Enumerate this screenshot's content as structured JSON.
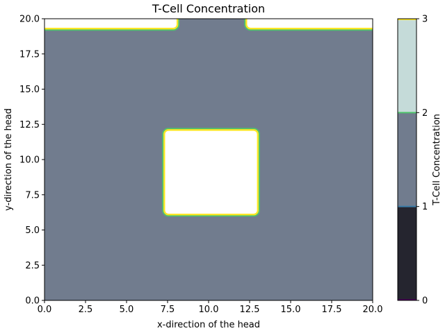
{
  "chart_data": {
    "type": "heatmap",
    "title": "T-Cell Concentration",
    "xlabel": "x-direction of the head",
    "ylabel": "y-direction of the head",
    "xlim": [
      0.0,
      20.0
    ],
    "ylim": [
      0.0,
      20.0
    ],
    "x_ticks": [
      0.0,
      2.5,
      5.0,
      7.5,
      10.0,
      12.5,
      15.0,
      17.5,
      20.0
    ],
    "x_tick_labels": [
      "0.0",
      "2.5",
      "5.0",
      "7.5",
      "10.0",
      "12.5",
      "15.0",
      "17.5",
      "20.0"
    ],
    "y_ticks": [
      0.0,
      2.5,
      5.0,
      7.5,
      10.0,
      12.5,
      15.0,
      17.5,
      20.0
    ],
    "y_tick_labels": [
      "0.0",
      "2.5",
      "5.0",
      "7.5",
      "10.0",
      "12.5",
      "15.0",
      "17.5",
      "20.0"
    ],
    "background_level": 2,
    "regions": [
      {
        "name": "center-block",
        "x": [
          7.3,
          13.0
        ],
        "y": [
          6.1,
          12.1
        ],
        "level": 3
      },
      {
        "name": "top-left-strip",
        "x": [
          0.0,
          8.1
        ],
        "y": [
          19.3,
          20.0
        ],
        "level": 3
      },
      {
        "name": "top-right-strip",
        "x": [
          12.3,
          20.0
        ],
        "y": [
          19.3,
          20.0
        ],
        "level": 3
      }
    ],
    "colorbar": {
      "label": "T-Cell Concentration",
      "range": [
        0,
        3
      ],
      "ticks": [
        0,
        1,
        2,
        3
      ],
      "tick_labels": [
        "0",
        "1",
        "2",
        "3"
      ],
      "bands": [
        {
          "from": 0,
          "to": 1,
          "color": "#25252f"
        },
        {
          "from": 1,
          "to": 2,
          "color": "#717c8e"
        },
        {
          "from": 2,
          "to": 3,
          "color": "#c5dbd9"
        }
      ],
      "boundary_colors": [
        "#440154",
        "#3a7ca8",
        "#4ec36b",
        "#fde725"
      ]
    },
    "colors": {
      "background_fill": "#717c8e",
      "region_fill": "#ffffff",
      "inner_contour": "#fde725",
      "outer_contour": "#4ec36b"
    }
  }
}
